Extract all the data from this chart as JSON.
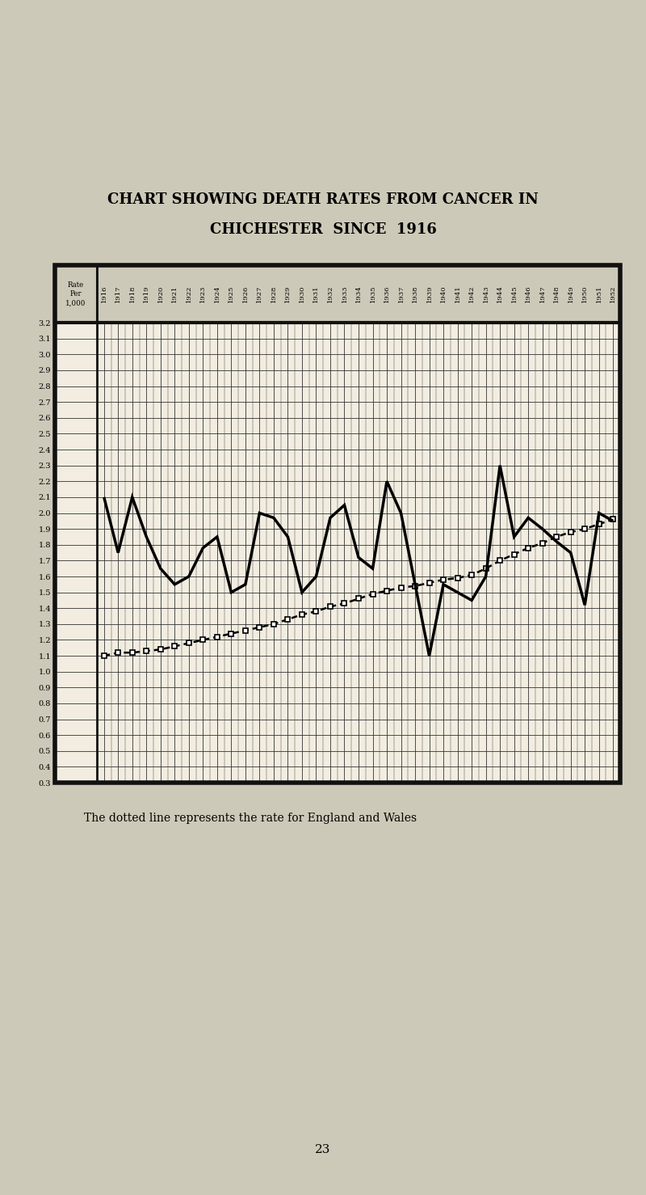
{
  "title_line1": "CHART SHOWING DEATH RATES FROM CANCER IN",
  "title_line2": "CHICHESTER  SINCE  1916",
  "caption": "The dotted line represents the rate for England and Wales",
  "years": [
    1916,
    1917,
    1918,
    1919,
    1920,
    1921,
    1922,
    1923,
    1924,
    1925,
    1926,
    1927,
    1928,
    1929,
    1930,
    1931,
    1932,
    1933,
    1934,
    1935,
    1936,
    1937,
    1938,
    1939,
    1940,
    1941,
    1942,
    1943,
    1944,
    1945,
    1946,
    1947,
    1948,
    1949,
    1950,
    1951,
    1952
  ],
  "chichester": [
    2.1,
    1.75,
    2.1,
    1.85,
    1.65,
    1.55,
    1.6,
    1.78,
    1.85,
    1.5,
    1.55,
    2.0,
    1.97,
    1.85,
    1.5,
    1.6,
    1.97,
    2.05,
    1.72,
    1.65,
    2.2,
    2.0,
    1.55,
    1.1,
    1.55,
    1.5,
    1.45,
    1.6,
    2.3,
    1.85,
    1.97,
    1.9,
    1.82,
    1.75,
    1.42,
    2.0,
    1.95
  ],
  "england_wales": [
    1.1,
    1.12,
    1.12,
    1.13,
    1.14,
    1.16,
    1.18,
    1.2,
    1.22,
    1.24,
    1.26,
    1.28,
    1.3,
    1.33,
    1.36,
    1.38,
    1.41,
    1.43,
    1.46,
    1.49,
    1.51,
    1.53,
    1.54,
    1.56,
    1.58,
    1.59,
    1.61,
    1.65,
    1.7,
    1.74,
    1.78,
    1.81,
    1.85,
    1.88,
    1.9,
    1.93,
    1.96
  ],
  "ymin": 0.3,
  "ymax": 3.2,
  "yticks": [
    0.3,
    0.4,
    0.5,
    0.6,
    0.7,
    0.8,
    0.9,
    1.0,
    1.1,
    1.2,
    1.3,
    1.4,
    1.5,
    1.6,
    1.7,
    1.8,
    1.9,
    2.0,
    2.1,
    2.2,
    2.3,
    2.4,
    2.5,
    2.6,
    2.7,
    2.8,
    2.9,
    3.0,
    3.1,
    3.2
  ],
  "page_bg": "#cdc9b8",
  "plot_bg": "#f2ede0",
  "header_bg": "#e0dbd0",
  "border_color": "#111111",
  "grid_color": "#333333",
  "line_color": "#000000",
  "page_number": "23"
}
